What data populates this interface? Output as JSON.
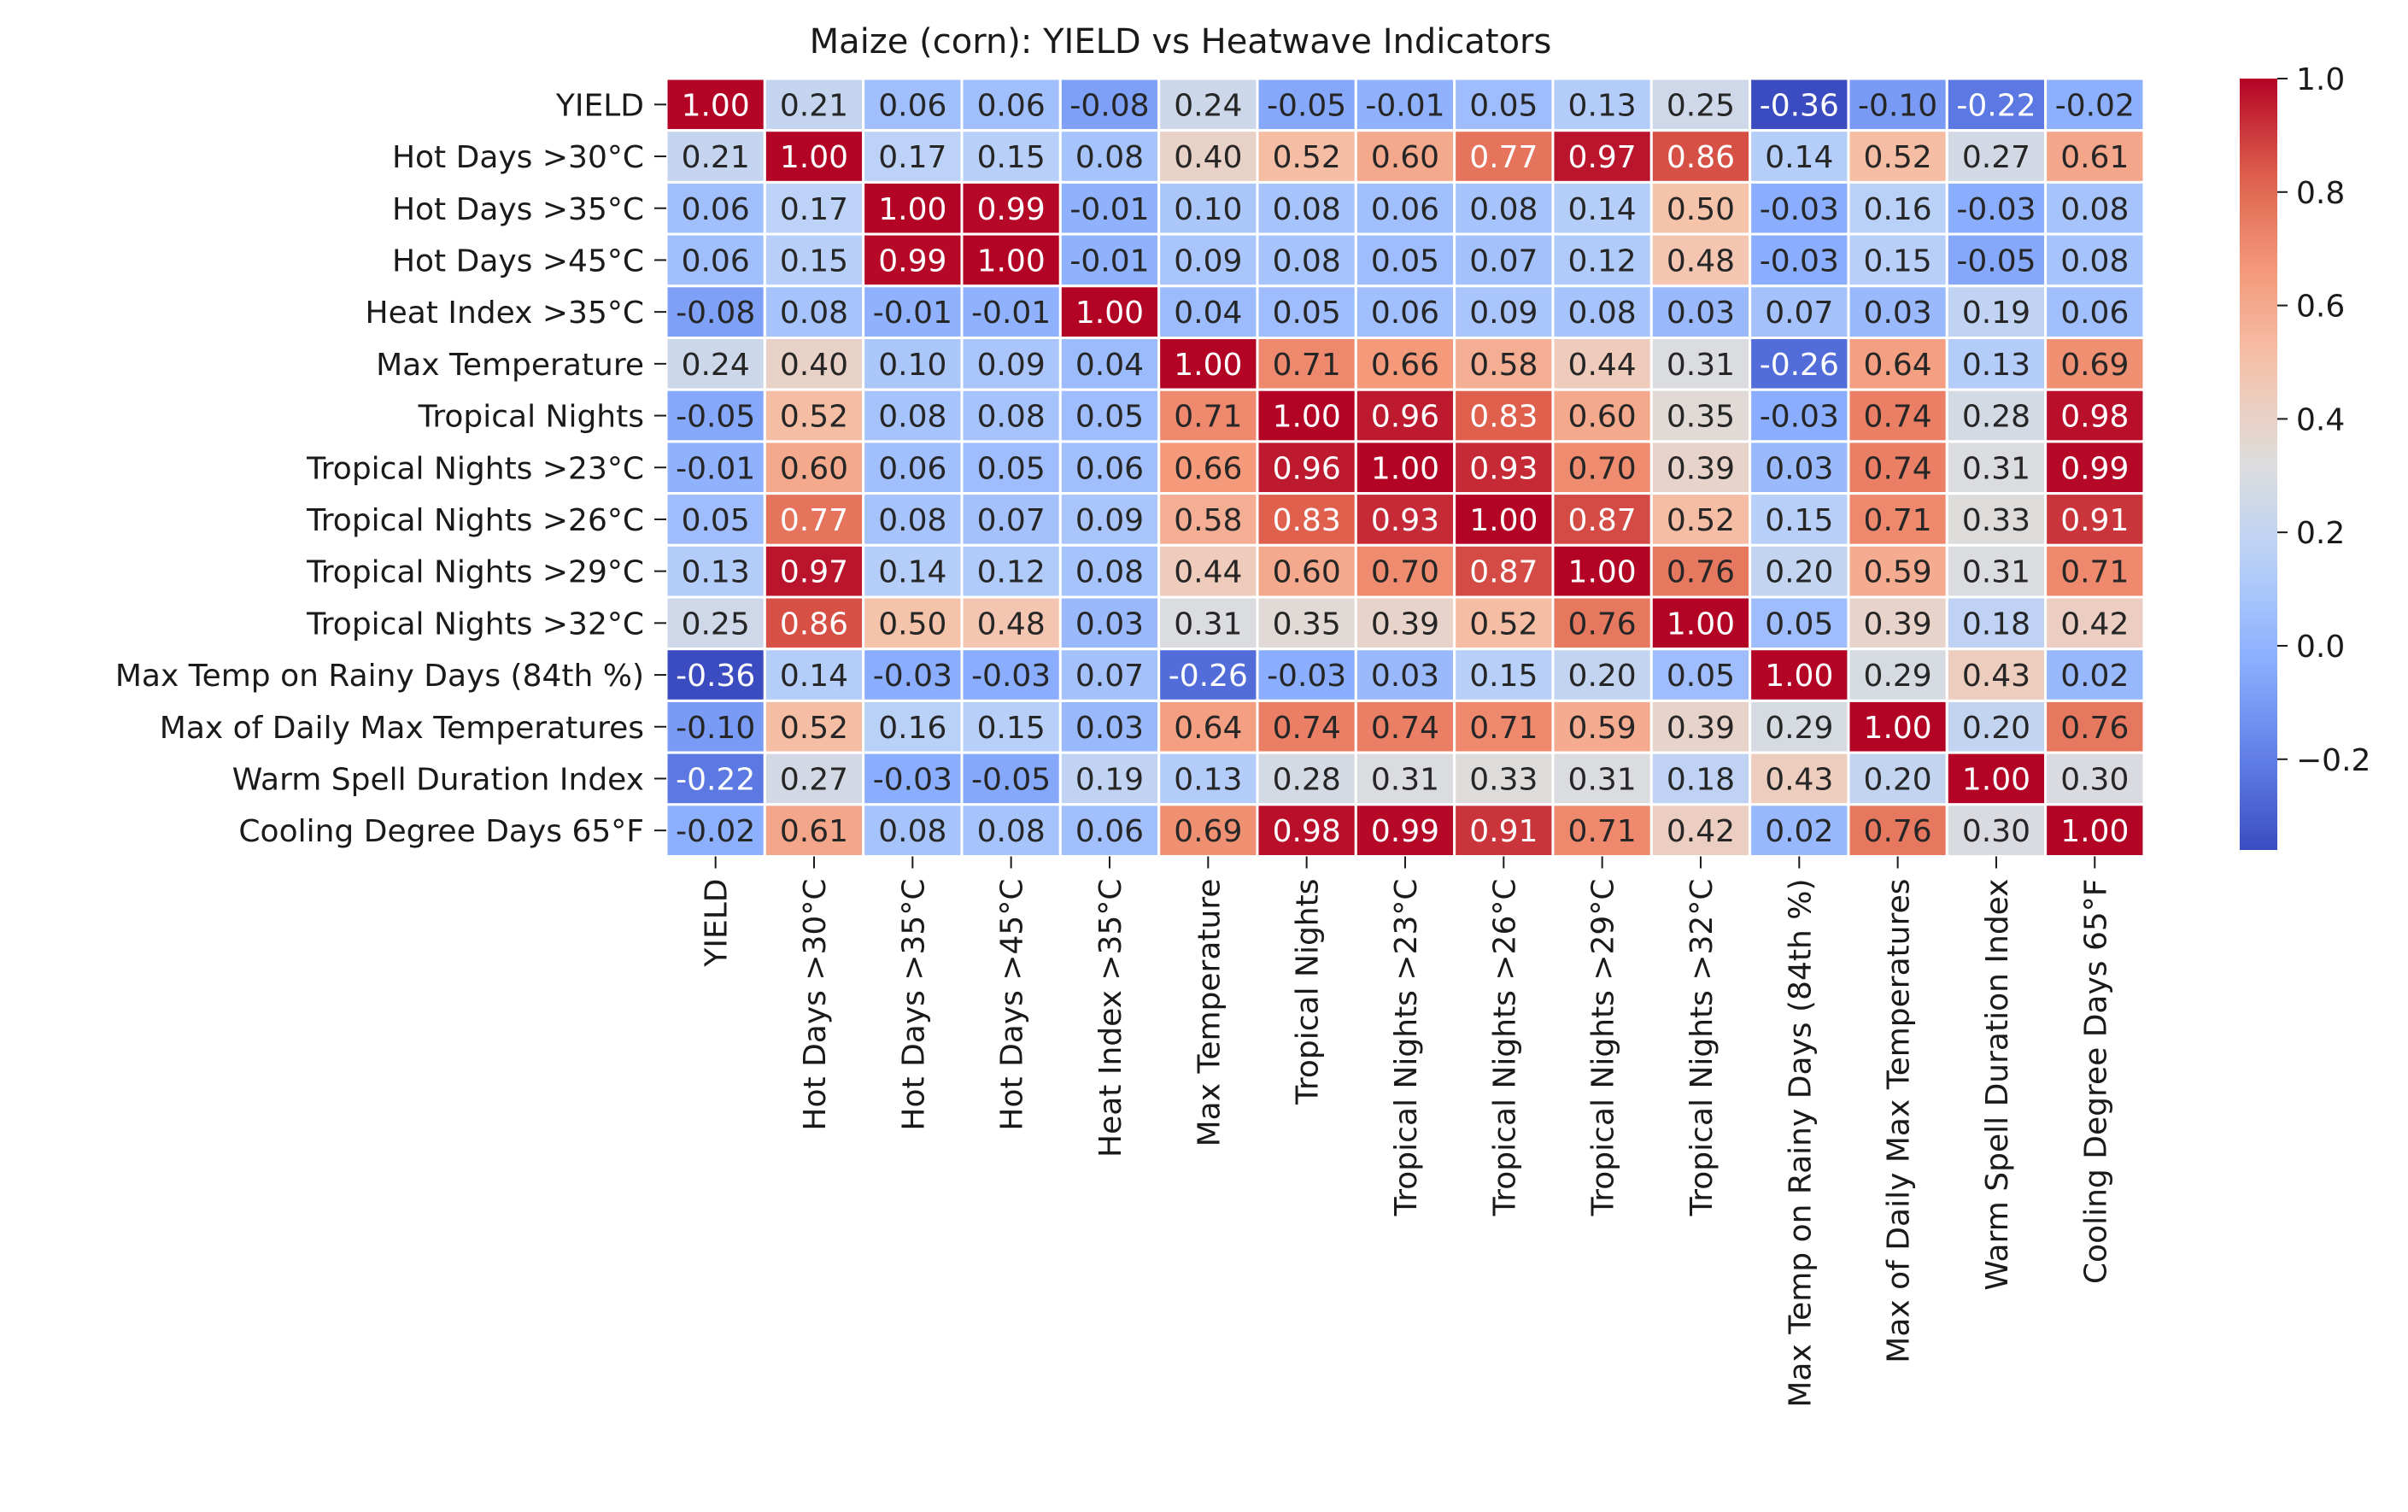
{
  "chart_data": {
    "type": "heatmap",
    "title": "Maize (corn): YIELD vs Heatwave Indicators",
    "labels": [
      "YIELD",
      "Hot Days >30°C",
      "Hot Days >35°C",
      "Hot Days >45°C",
      "Heat Index >35°C",
      "Max Temperature",
      "Tropical Nights",
      "Tropical Nights >23°C",
      "Tropical Nights >26°C",
      "Tropical Nights >29°C",
      "Tropical Nights >32°C",
      "Max Temp on Rainy Days (84th %)",
      "Max of Daily Max Temperatures",
      "Warm Spell Duration Index",
      "Cooling Degree Days 65°F"
    ],
    "values": [
      [
        1.0,
        0.21,
        0.06,
        0.06,
        -0.08,
        0.24,
        -0.05,
        -0.01,
        0.05,
        0.13,
        0.25,
        -0.36,
        -0.1,
        -0.22,
        -0.02
      ],
      [
        0.21,
        1.0,
        0.17,
        0.15,
        0.08,
        0.4,
        0.52,
        0.6,
        0.77,
        0.97,
        0.86,
        0.14,
        0.52,
        0.27,
        0.61
      ],
      [
        0.06,
        0.17,
        1.0,
        0.99,
        -0.01,
        0.1,
        0.08,
        0.06,
        0.08,
        0.14,
        0.5,
        -0.03,
        0.16,
        -0.03,
        0.08
      ],
      [
        0.06,
        0.15,
        0.99,
        1.0,
        -0.01,
        0.09,
        0.08,
        0.05,
        0.07,
        0.12,
        0.48,
        -0.03,
        0.15,
        -0.05,
        0.08
      ],
      [
        -0.08,
        0.08,
        -0.01,
        -0.01,
        1.0,
        0.04,
        0.05,
        0.06,
        0.09,
        0.08,
        0.03,
        0.07,
        0.03,
        0.19,
        0.06
      ],
      [
        0.24,
        0.4,
        0.1,
        0.09,
        0.04,
        1.0,
        0.71,
        0.66,
        0.58,
        0.44,
        0.31,
        -0.26,
        0.64,
        0.13,
        0.69
      ],
      [
        -0.05,
        0.52,
        0.08,
        0.08,
        0.05,
        0.71,
        1.0,
        0.96,
        0.83,
        0.6,
        0.35,
        -0.03,
        0.74,
        0.28,
        0.98
      ],
      [
        -0.01,
        0.6,
        0.06,
        0.05,
        0.06,
        0.66,
        0.96,
        1.0,
        0.93,
        0.7,
        0.39,
        0.03,
        0.74,
        0.31,
        0.99
      ],
      [
        0.05,
        0.77,
        0.08,
        0.07,
        0.09,
        0.58,
        0.83,
        0.93,
        1.0,
        0.87,
        0.52,
        0.15,
        0.71,
        0.33,
        0.91
      ],
      [
        0.13,
        0.97,
        0.14,
        0.12,
        0.08,
        0.44,
        0.6,
        0.7,
        0.87,
        1.0,
        0.76,
        0.2,
        0.59,
        0.31,
        0.71
      ],
      [
        0.25,
        0.86,
        0.5,
        0.48,
        0.03,
        0.31,
        0.35,
        0.39,
        0.52,
        0.76,
        1.0,
        0.05,
        0.39,
        0.18,
        0.42
      ],
      [
        -0.36,
        0.14,
        -0.03,
        -0.03,
        0.07,
        -0.26,
        -0.03,
        0.03,
        0.15,
        0.2,
        0.05,
        1.0,
        0.29,
        0.43,
        0.02
      ],
      [
        -0.1,
        0.52,
        0.16,
        0.15,
        0.03,
        0.64,
        0.74,
        0.74,
        0.71,
        0.59,
        0.39,
        0.29,
        1.0,
        0.2,
        0.76
      ],
      [
        -0.22,
        0.27,
        -0.03,
        -0.05,
        0.19,
        0.13,
        0.28,
        0.31,
        0.33,
        0.31,
        0.18,
        0.43,
        0.2,
        1.0,
        0.3
      ],
      [
        -0.02,
        0.61,
        0.08,
        0.08,
        0.06,
        0.69,
        0.98,
        0.99,
        0.91,
        0.71,
        0.42,
        0.02,
        0.76,
        0.3,
        1.0
      ]
    ],
    "colormap": "coolwarm",
    "vmin": -0.36,
    "vmax": 1.0,
    "colorbar_ticks": [
      -0.2,
      0.0,
      0.2,
      0.4,
      0.6,
      0.8,
      1.0
    ],
    "colorbar_tick_labels": [
      "−0.2",
      "0.0",
      "0.2",
      "0.4",
      "0.6",
      "0.8",
      "1.0"
    ],
    "value_format": "2 decimals",
    "cell_border_color": "#ffffff",
    "colors": {
      "low": "#3b4cc0",
      "mid": "#dddddd",
      "high": "#b40426"
    }
  }
}
